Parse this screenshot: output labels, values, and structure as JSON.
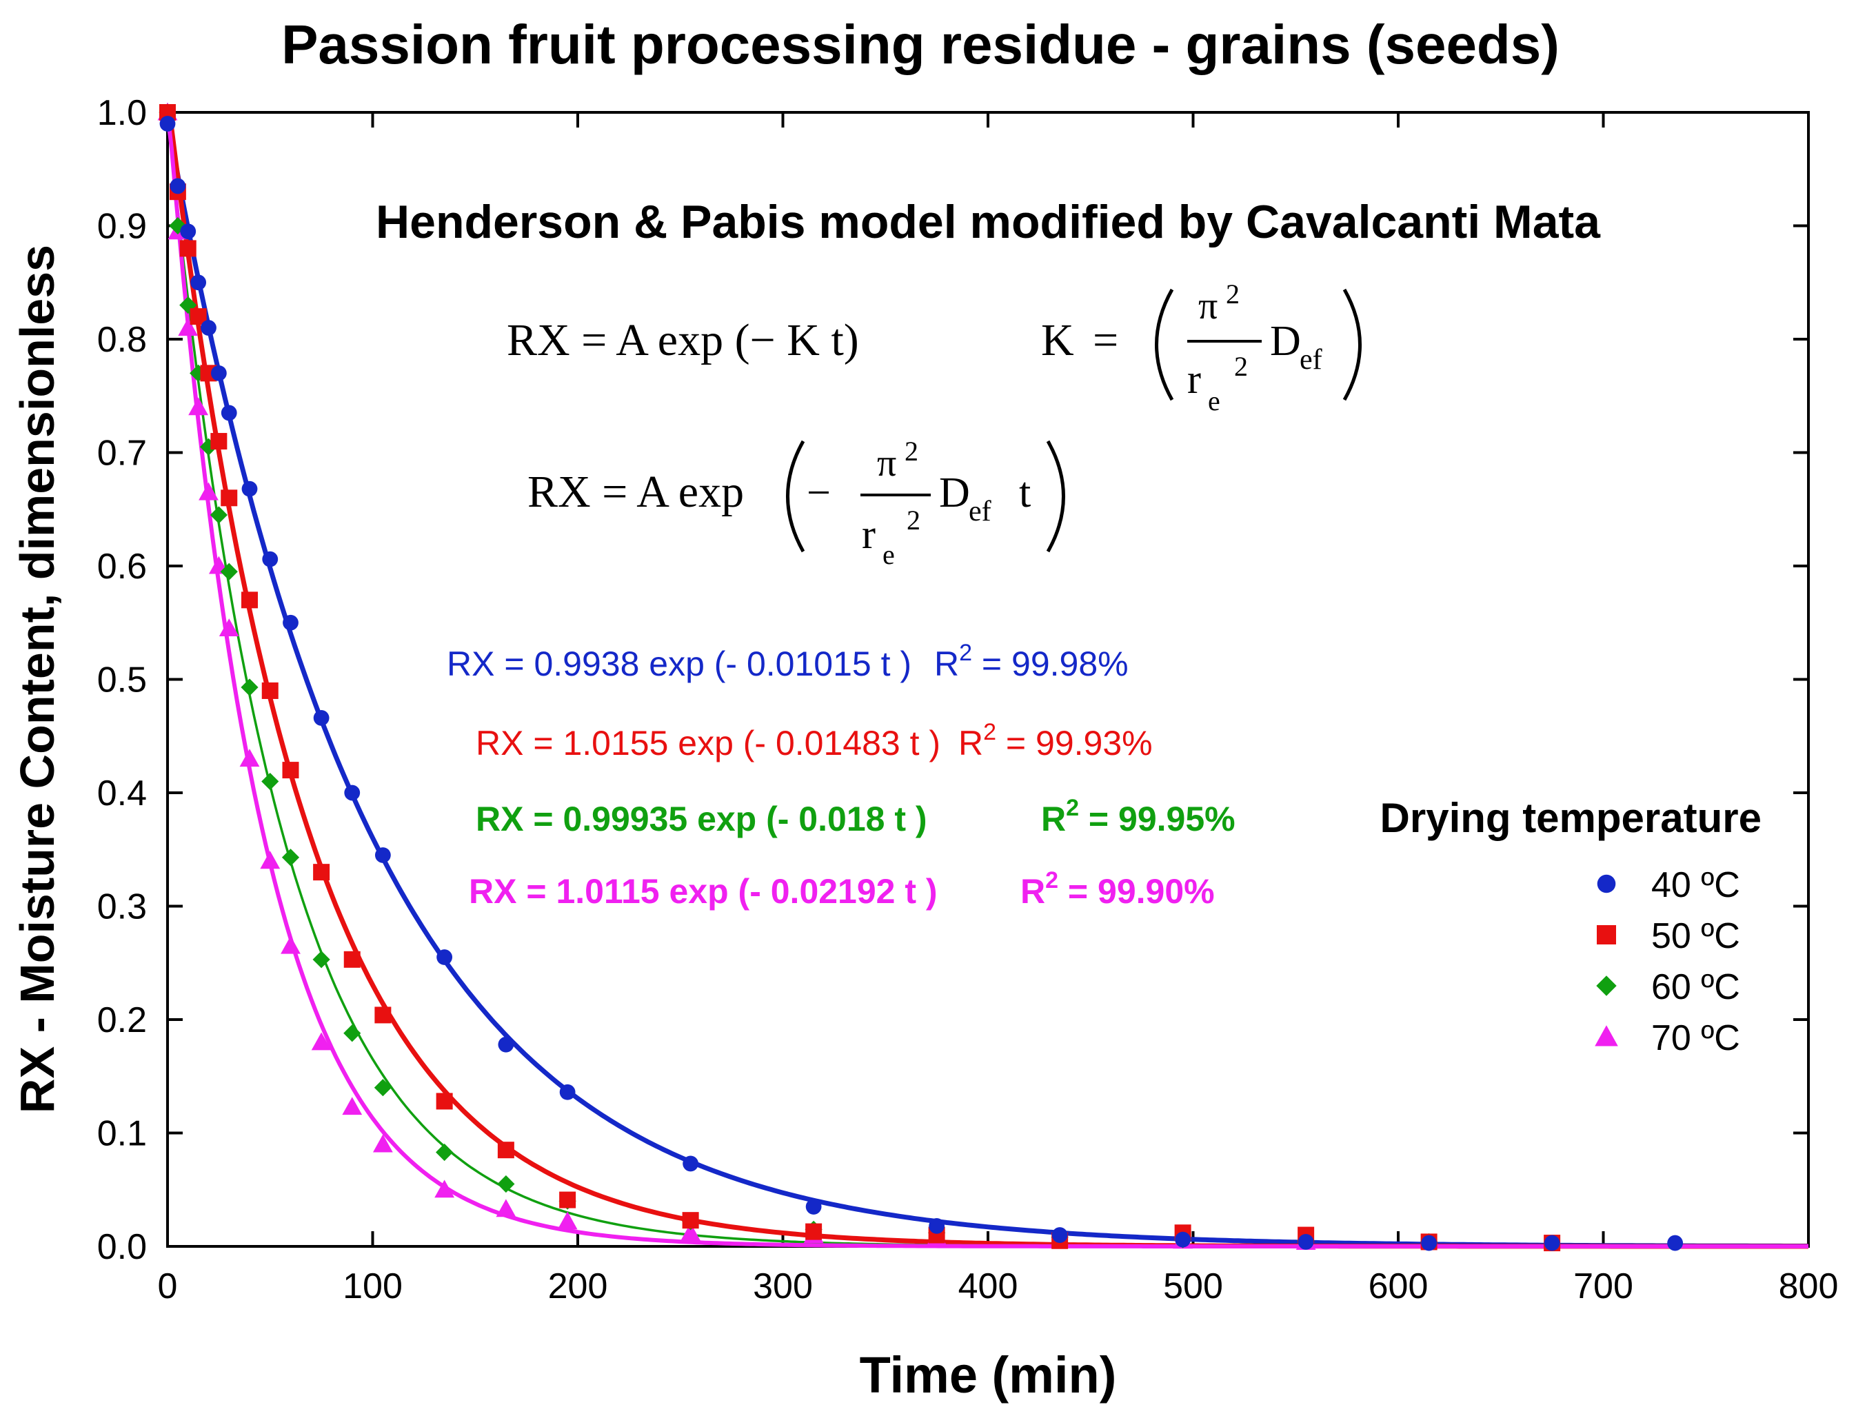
{
  "chart_data": {
    "type": "scatter",
    "title": "Passion fruit processing residue - grains (seeds)",
    "subtitle": "Henderson & Pabis model modified by Cavalcanti Mata",
    "xlabel": "Time (min)",
    "ylabel": "RX - Moisture Content, dimensionless",
    "xlim": [
      0,
      800
    ],
    "ylim": [
      0,
      1.0
    ],
    "x_ticks": [
      "0",
      "100",
      "200",
      "300",
      "400",
      "500",
      "600",
      "700",
      "800"
    ],
    "y_ticks": [
      "0.0",
      "0.1",
      "0.2",
      "0.3",
      "0.4",
      "0.5",
      "0.6",
      "0.7",
      "0.8",
      "0.9",
      "1.0"
    ],
    "legend_title": "Drying temperature",
    "legend_position": "right",
    "formulas": {
      "f1_left": "RX = A exp (− K t)",
      "k": "K",
      "eq": "=",
      "pi": "π",
      "sup2": "2",
      "r": "r",
      "sub_e": "e",
      "d": "D",
      "sub_ef": "ef",
      "rx_a_exp": "RX = A exp",
      "minus": "−",
      "t": "t"
    },
    "series": [
      {
        "name": "40 ºC",
        "color": "#1428c8",
        "marker": "circle",
        "A": 0.9938,
        "K": 0.01015,
        "equation": "RX = 0.9938 exp (- 0.01015 t )",
        "r2_label": "R",
        "r2_sup": "2",
        "r2_value": " = 99.98%",
        "x": [
          0,
          5,
          10,
          15,
          20,
          25,
          30,
          40,
          50,
          60,
          75,
          90,
          105,
          135,
          165,
          195,
          255,
          315,
          375,
          435,
          495,
          555,
          615,
          675,
          735
        ],
        "y": [
          0.99,
          0.935,
          0.895,
          0.85,
          0.81,
          0.77,
          0.735,
          0.668,
          0.606,
          0.55,
          0.466,
          0.4,
          0.345,
          0.255,
          0.178,
          0.136,
          0.073,
          0.035,
          0.018,
          0.01,
          0.006,
          0.004,
          0.003,
          0.003,
          0.003
        ]
      },
      {
        "name": "50 ºC",
        "color": "#e81010",
        "marker": "square",
        "A": 1.0155,
        "K": 0.01483,
        "equation": "RX = 1.0155 exp (- 0.01483 t )",
        "r2_label": "R",
        "r2_sup": "2",
        "r2_value": " = 99.93%",
        "x": [
          0,
          5,
          10,
          15,
          20,
          25,
          30,
          40,
          50,
          60,
          75,
          90,
          105,
          135,
          165,
          195,
          255,
          315,
          375,
          435,
          495,
          555,
          615,
          675
        ],
        "y": [
          1.0,
          0.93,
          0.88,
          0.82,
          0.77,
          0.71,
          0.66,
          0.57,
          0.49,
          0.42,
          0.33,
          0.253,
          0.204,
          0.128,
          0.085,
          0.041,
          0.023,
          0.013,
          0.01,
          0.005,
          0.012,
          0.01,
          0.004,
          0.003
        ]
      },
      {
        "name": "60 ºC",
        "color": "#10a010",
        "marker": "diamond",
        "A": 0.99935,
        "K": 0.018,
        "equation": "RX = 0.99935 exp (- 0.018 t )",
        "r2_label": "R",
        "r2_sup": "2",
        "r2_value": " = 99.95%",
        "x": [
          0,
          5,
          10,
          15,
          20,
          25,
          30,
          40,
          50,
          60,
          75,
          90,
          105,
          135,
          165,
          195,
          255,
          315,
          375,
          435,
          495,
          555,
          615
        ],
        "y": [
          1.0,
          0.9,
          0.83,
          0.77,
          0.705,
          0.645,
          0.595,
          0.493,
          0.41,
          0.343,
          0.253,
          0.188,
          0.14,
          0.083,
          0.055,
          0.04,
          0.022,
          0.015,
          0.012,
          0.008,
          0.006,
          0.005,
          0.004
        ]
      },
      {
        "name": "70 ºC",
        "color": "#f020f0",
        "marker": "triangle",
        "A": 1.0115,
        "K": 0.02192,
        "equation": "RX = 1.0115 exp (- 0.02192 t )",
        "r2_label": "R",
        "r2_sup": "2",
        "r2_value": " = 99.90%",
        "x": [
          0,
          5,
          10,
          15,
          20,
          25,
          30,
          40,
          50,
          60,
          75,
          90,
          105,
          135,
          165,
          195,
          255,
          315,
          375,
          435,
          495,
          555
        ],
        "y": [
          1.0,
          0.895,
          0.81,
          0.74,
          0.665,
          0.6,
          0.545,
          0.43,
          0.34,
          0.265,
          0.18,
          0.123,
          0.09,
          0.05,
          0.033,
          0.022,
          0.012,
          0.01,
          0.008,
          0.006,
          0.005,
          0.004
        ]
      }
    ]
  }
}
